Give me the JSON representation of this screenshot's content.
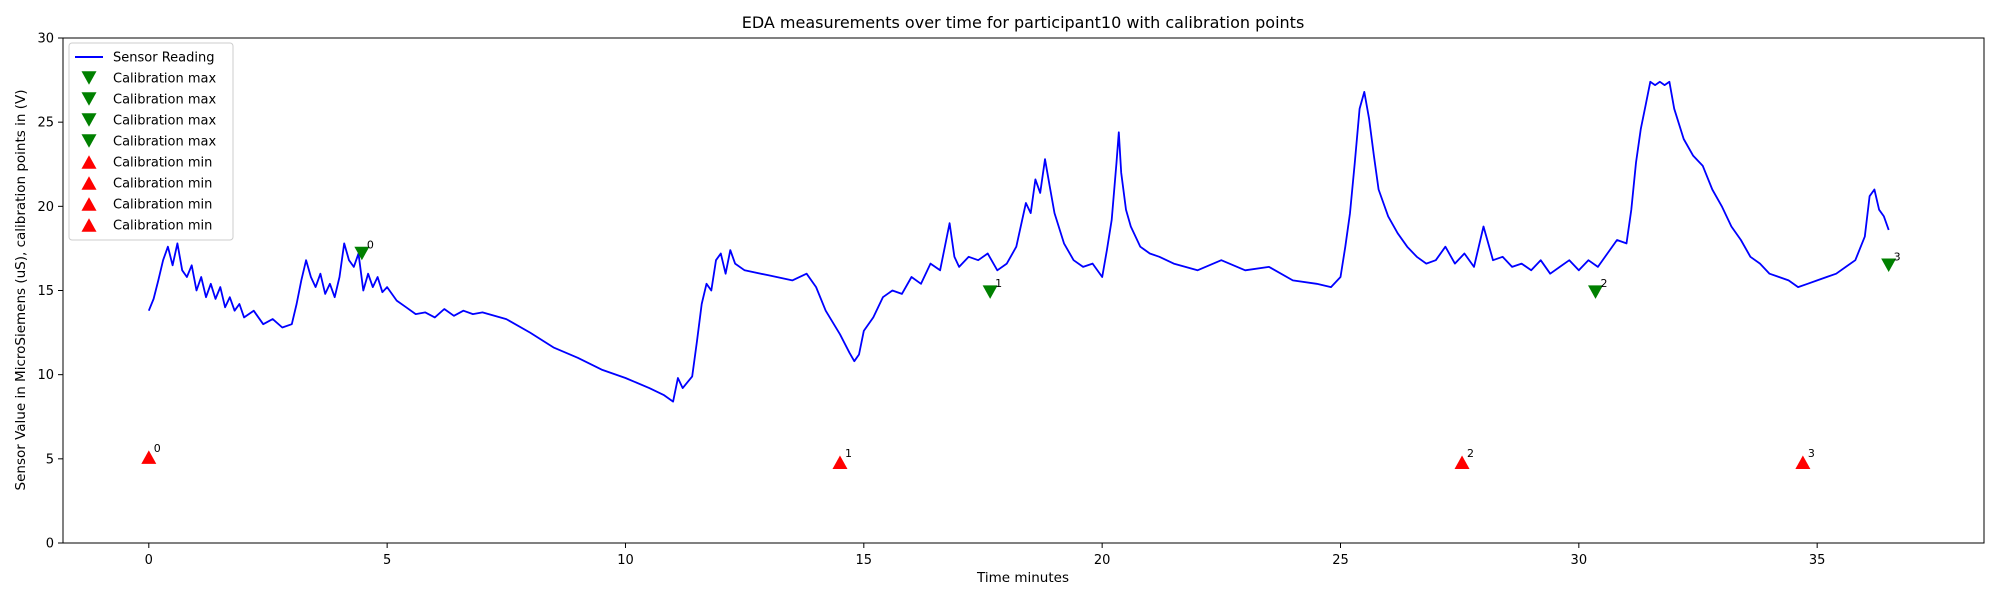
{
  "chart_data": {
    "type": "line",
    "title": "EDA measurements over time for participant10 with calibration points",
    "xlabel": "Time minutes",
    "ylabel": "Sensor Value in MicroSiemens (uS), calibration points in (V)",
    "xlim": [
      -1.8,
      38.5
    ],
    "ylim": [
      0,
      30
    ],
    "xticks": [
      0,
      5,
      10,
      15,
      20,
      25,
      30,
      35
    ],
    "yticks": [
      0,
      5,
      10,
      15,
      20,
      25,
      30
    ],
    "grid": false,
    "legend_position": "top-left",
    "series": [
      {
        "name": "Sensor Reading",
        "kind": "line",
        "color": "#0000ff",
        "points": [
          [
            0,
            13.8
          ],
          [
            0.1,
            14.5
          ],
          [
            0.2,
            15.6
          ],
          [
            0.3,
            16.8
          ],
          [
            0.4,
            17.6
          ],
          [
            0.5,
            16.5
          ],
          [
            0.6,
            17.8
          ],
          [
            0.7,
            16.2
          ],
          [
            0.8,
            15.8
          ],
          [
            0.9,
            16.5
          ],
          [
            1.0,
            15.0
          ],
          [
            1.1,
            15.8
          ],
          [
            1.2,
            14.6
          ],
          [
            1.3,
            15.4
          ],
          [
            1.4,
            14.5
          ],
          [
            1.5,
            15.2
          ],
          [
            1.6,
            14.0
          ],
          [
            1.7,
            14.6
          ],
          [
            1.8,
            13.8
          ],
          [
            1.9,
            14.2
          ],
          [
            2.0,
            13.4
          ],
          [
            2.2,
            13.8
          ],
          [
            2.4,
            13.0
          ],
          [
            2.6,
            13.3
          ],
          [
            2.8,
            12.8
          ],
          [
            3.0,
            13.0
          ],
          [
            3.1,
            14.2
          ],
          [
            3.2,
            15.6
          ],
          [
            3.3,
            16.8
          ],
          [
            3.4,
            15.8
          ],
          [
            3.5,
            15.2
          ],
          [
            3.6,
            16.0
          ],
          [
            3.7,
            14.8
          ],
          [
            3.8,
            15.4
          ],
          [
            3.9,
            14.6
          ],
          [
            4.0,
            15.8
          ],
          [
            4.1,
            17.8
          ],
          [
            4.2,
            16.8
          ],
          [
            4.3,
            16.4
          ],
          [
            4.4,
            17.2
          ],
          [
            4.5,
            15.0
          ],
          [
            4.6,
            16.0
          ],
          [
            4.7,
            15.2
          ],
          [
            4.8,
            15.8
          ],
          [
            4.9,
            14.9
          ],
          [
            5.0,
            15.2
          ],
          [
            5.2,
            14.4
          ],
          [
            5.4,
            14.0
          ],
          [
            5.6,
            13.6
          ],
          [
            5.8,
            13.7
          ],
          [
            6.0,
            13.4
          ],
          [
            6.2,
            13.9
          ],
          [
            6.4,
            13.5
          ],
          [
            6.6,
            13.8
          ],
          [
            6.8,
            13.6
          ],
          [
            7.0,
            13.7
          ],
          [
            7.5,
            13.3
          ],
          [
            8.0,
            12.5
          ],
          [
            8.5,
            11.6
          ],
          [
            9.0,
            11.0
          ],
          [
            9.5,
            10.3
          ],
          [
            10.0,
            9.8
          ],
          [
            10.5,
            9.2
          ],
          [
            10.8,
            8.8
          ],
          [
            11.0,
            8.4
          ],
          [
            11.1,
            9.8
          ],
          [
            11.2,
            9.2
          ],
          [
            11.4,
            9.9
          ],
          [
            11.5,
            12.0
          ],
          [
            11.6,
            14.2
          ],
          [
            11.7,
            15.4
          ],
          [
            11.8,
            15.0
          ],
          [
            11.9,
            16.8
          ],
          [
            12.0,
            17.2
          ],
          [
            12.1,
            16.0
          ],
          [
            12.2,
            17.4
          ],
          [
            12.3,
            16.6
          ],
          [
            12.5,
            16.2
          ],
          [
            13.0,
            15.9
          ],
          [
            13.5,
            15.6
          ],
          [
            13.8,
            16.0
          ],
          [
            14.0,
            15.2
          ],
          [
            14.2,
            13.8
          ],
          [
            14.5,
            12.4
          ],
          [
            14.7,
            11.3
          ],
          [
            14.8,
            10.8
          ],
          [
            14.9,
            11.2
          ],
          [
            15.0,
            12.6
          ],
          [
            15.2,
            13.4
          ],
          [
            15.4,
            14.6
          ],
          [
            15.6,
            15.0
          ],
          [
            15.8,
            14.8
          ],
          [
            16.0,
            15.8
          ],
          [
            16.2,
            15.4
          ],
          [
            16.4,
            16.6
          ],
          [
            16.6,
            16.2
          ],
          [
            16.8,
            19.0
          ],
          [
            16.9,
            17.0
          ],
          [
            17.0,
            16.4
          ],
          [
            17.2,
            17.0
          ],
          [
            17.4,
            16.8
          ],
          [
            17.6,
            17.2
          ],
          [
            17.8,
            16.2
          ],
          [
            18.0,
            16.6
          ],
          [
            18.2,
            17.6
          ],
          [
            18.4,
            20.2
          ],
          [
            18.5,
            19.6
          ],
          [
            18.6,
            21.6
          ],
          [
            18.7,
            20.8
          ],
          [
            18.8,
            22.8
          ],
          [
            18.9,
            21.2
          ],
          [
            19.0,
            19.6
          ],
          [
            19.2,
            17.8
          ],
          [
            19.4,
            16.8
          ],
          [
            19.6,
            16.4
          ],
          [
            19.8,
            16.6
          ],
          [
            20.0,
            15.8
          ],
          [
            20.1,
            17.4
          ],
          [
            20.2,
            19.2
          ],
          [
            20.3,
            22.6
          ],
          [
            20.35,
            24.4
          ],
          [
            20.4,
            22.0
          ],
          [
            20.5,
            19.8
          ],
          [
            20.6,
            18.8
          ],
          [
            20.8,
            17.6
          ],
          [
            21.0,
            17.2
          ],
          [
            21.2,
            17.0
          ],
          [
            21.5,
            16.6
          ],
          [
            22.0,
            16.2
          ],
          [
            22.5,
            16.8
          ],
          [
            23.0,
            16.2
          ],
          [
            23.5,
            16.4
          ],
          [
            24.0,
            15.6
          ],
          [
            24.5,
            15.4
          ],
          [
            24.8,
            15.2
          ],
          [
            25.0,
            15.8
          ],
          [
            25.1,
            17.6
          ],
          [
            25.2,
            19.6
          ],
          [
            25.3,
            22.6
          ],
          [
            25.35,
            24.2
          ],
          [
            25.4,
            25.8
          ],
          [
            25.5,
            26.8
          ],
          [
            25.6,
            25.2
          ],
          [
            25.7,
            23.0
          ],
          [
            25.8,
            21.0
          ],
          [
            26.0,
            19.4
          ],
          [
            26.2,
            18.4
          ],
          [
            26.4,
            17.6
          ],
          [
            26.6,
            17.0
          ],
          [
            26.8,
            16.6
          ],
          [
            27.0,
            16.8
          ],
          [
            27.2,
            17.6
          ],
          [
            27.4,
            16.6
          ],
          [
            27.6,
            17.2
          ],
          [
            27.8,
            16.4
          ],
          [
            28.0,
            18.8
          ],
          [
            28.2,
            16.8
          ],
          [
            28.4,
            17.0
          ],
          [
            28.6,
            16.4
          ],
          [
            28.8,
            16.6
          ],
          [
            29.0,
            16.2
          ],
          [
            29.2,
            16.8
          ],
          [
            29.4,
            16.0
          ],
          [
            29.6,
            16.4
          ],
          [
            29.8,
            16.8
          ],
          [
            30.0,
            16.2
          ],
          [
            30.2,
            16.8
          ],
          [
            30.4,
            16.4
          ],
          [
            30.6,
            17.2
          ],
          [
            30.8,
            18.0
          ],
          [
            31.0,
            17.8
          ],
          [
            31.1,
            19.8
          ],
          [
            31.2,
            22.6
          ],
          [
            31.3,
            24.6
          ],
          [
            31.4,
            26.0
          ],
          [
            31.5,
            27.4
          ],
          [
            31.6,
            27.2
          ],
          [
            31.7,
            27.4
          ],
          [
            31.8,
            27.2
          ],
          [
            31.9,
            27.4
          ],
          [
            32.0,
            25.8
          ],
          [
            32.2,
            24.0
          ],
          [
            32.4,
            23.0
          ],
          [
            32.6,
            22.4
          ],
          [
            32.8,
            21.0
          ],
          [
            33.0,
            20.0
          ],
          [
            33.2,
            18.8
          ],
          [
            33.4,
            18.0
          ],
          [
            33.6,
            17.0
          ],
          [
            33.8,
            16.6
          ],
          [
            34.0,
            16.0
          ],
          [
            34.2,
            15.8
          ],
          [
            34.4,
            15.6
          ],
          [
            34.6,
            15.2
          ],
          [
            34.8,
            15.4
          ],
          [
            35.0,
            15.6
          ],
          [
            35.2,
            15.8
          ],
          [
            35.4,
            16.0
          ],
          [
            35.6,
            16.4
          ],
          [
            35.8,
            16.8
          ],
          [
            36.0,
            18.2
          ],
          [
            36.1,
            20.6
          ],
          [
            36.2,
            21.0
          ],
          [
            36.3,
            19.8
          ],
          [
            36.4,
            19.4
          ],
          [
            36.5,
            18.6
          ]
        ]
      },
      {
        "name": "Calibration max",
        "kind": "marker",
        "marker": "triangle-down",
        "color": "#008000",
        "x": [
          4.47
        ],
        "y": [
          17.2
        ],
        "labels": [
          "0"
        ]
      },
      {
        "name": "Calibration max",
        "kind": "marker",
        "marker": "triangle-down",
        "color": "#008000",
        "x": [
          17.65
        ],
        "y": [
          14.9
        ],
        "labels": [
          "1"
        ]
      },
      {
        "name": "Calibration max",
        "kind": "marker",
        "marker": "triangle-down",
        "color": "#008000",
        "x": [
          30.35
        ],
        "y": [
          14.9
        ],
        "labels": [
          "2"
        ]
      },
      {
        "name": "Calibration max",
        "kind": "marker",
        "marker": "triangle-down",
        "color": "#008000",
        "x": [
          36.5
        ],
        "y": [
          16.5
        ],
        "labels": [
          "3"
        ]
      },
      {
        "name": "Calibration min",
        "kind": "marker",
        "marker": "triangle-up",
        "color": "#ff0000",
        "x": [
          0.0
        ],
        "y": [
          5.1
        ],
        "labels": [
          "0"
        ]
      },
      {
        "name": "Calibration min",
        "kind": "marker",
        "marker": "triangle-up",
        "color": "#ff0000",
        "x": [
          14.5
        ],
        "y": [
          4.8
        ],
        "labels": [
          "1"
        ]
      },
      {
        "name": "Calibration min",
        "kind": "marker",
        "marker": "triangle-up",
        "color": "#ff0000",
        "x": [
          27.55
        ],
        "y": [
          4.8
        ],
        "labels": [
          "2"
        ]
      },
      {
        "name": "Calibration min",
        "kind": "marker",
        "marker": "triangle-up",
        "color": "#ff0000",
        "x": [
          34.7
        ],
        "y": [
          4.8
        ],
        "labels": [
          "3"
        ]
      }
    ]
  }
}
